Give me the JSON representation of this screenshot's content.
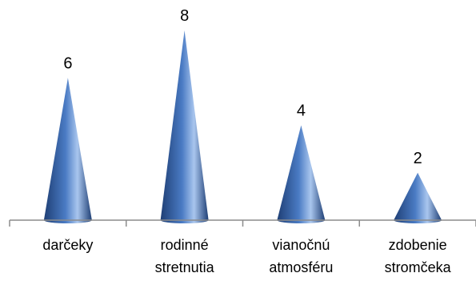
{
  "chart_data": {
    "type": "bar",
    "bar_shape": "cone",
    "categories": [
      [
        "darčeky"
      ],
      [
        "rodinné",
        "stretnutia"
      ],
      [
        "vianočnú",
        "atmosféru"
      ],
      [
        "zdobenie",
        "stromčeka"
      ]
    ],
    "values": [
      6,
      8,
      4,
      2
    ],
    "title": "",
    "xlabel": "",
    "ylabel": "",
    "ylim": [
      0,
      8.5
    ],
    "grid": false,
    "legend": "none",
    "data_labels": true,
    "colors": {
      "bar_dark": "#1f3f75",
      "bar_mid": "#4a7bc4",
      "bar_light": "#a9c6ee",
      "axis": "#8c8c8c"
    }
  }
}
